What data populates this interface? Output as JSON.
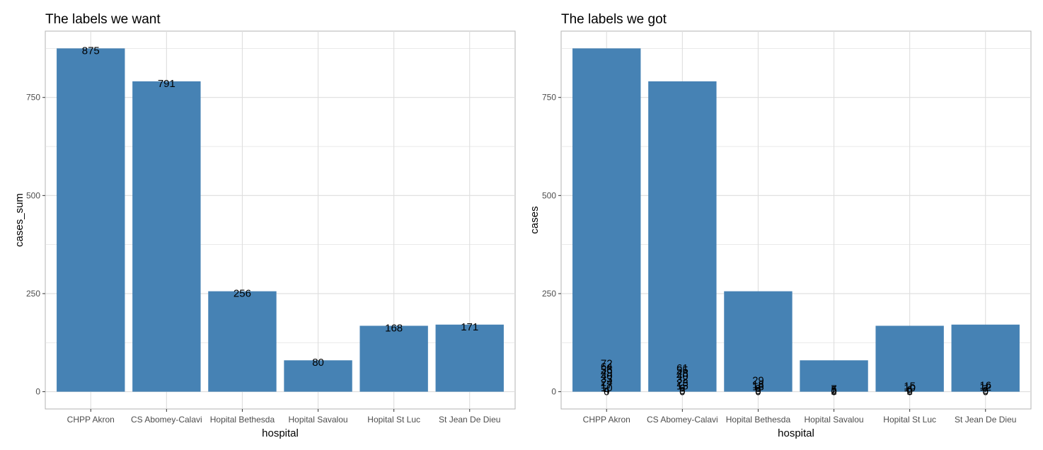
{
  "chart_data": [
    {
      "type": "bar",
      "title": "The labels we want",
      "xlabel": "hospital",
      "ylabel": "cases_sum",
      "categories": [
        "CHPP Akron",
        "CS Abomey-Calavi",
        "Hopital Bethesda",
        "Hopital Savalou",
        "Hopital St Luc",
        "St Jean De Dieu"
      ],
      "values": [
        875,
        791,
        256,
        80,
        168,
        171
      ],
      "data_labels": [
        "875",
        "791",
        "256",
        "80",
        "168",
        "171"
      ],
      "yticks": [
        0,
        250,
        500,
        750
      ],
      "ylim": [
        -44,
        919
      ],
      "grid": true,
      "bar_color": "#4682B4",
      "panel_border_color": "#B3B3B3",
      "grid_color": "#DEDEDE"
    },
    {
      "type": "bar",
      "title": "The labels we got",
      "xlabel": "hospital",
      "ylabel": "cases",
      "categories": [
        "CHPP Akron",
        "CS Abomey-Calavi",
        "Hopital Bethesda",
        "Hopital Savalou",
        "Hopital St Luc",
        "St Jean De Dieu"
      ],
      "values": [
        875,
        791,
        256,
        80,
        168,
        171
      ],
      "overlapping_labels": [
        [
          "0",
          "4",
          "10",
          "17",
          "24",
          "33",
          "40",
          "49",
          "56",
          "64",
          "72"
        ],
        [
          "0",
          "3",
          "9",
          "15",
          "23",
          "32",
          "40",
          "48",
          "55",
          "61"
        ],
        [
          "0",
          "3",
          "8",
          "13",
          "18",
          "29"
        ],
        [
          "0",
          "2",
          "5",
          "7"
        ],
        [
          "0",
          "2",
          "6",
          "10",
          "15"
        ],
        [
          "0",
          "3",
          "7",
          "12",
          "16"
        ]
      ],
      "yticks": [
        0,
        250,
        500,
        750
      ],
      "ylim": [
        -44,
        919
      ],
      "grid": true,
      "bar_color": "#4682B4",
      "panel_border_color": "#B3B3B3",
      "grid_color": "#DEDEDE"
    }
  ]
}
